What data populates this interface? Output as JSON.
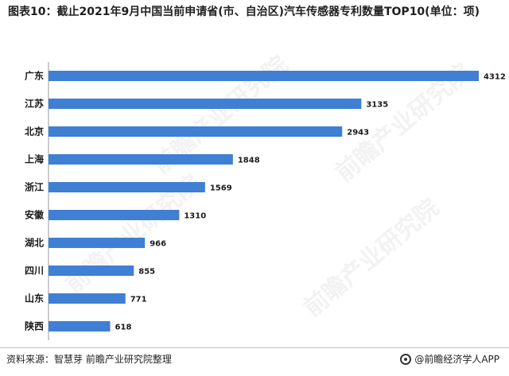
{
  "title": "图表10：截止2021年9月中国当前申请省(市、自治区)汽车传感器专利数量TOP10(单位：项)",
  "source": "资料来源：智慧芽 前瞻产业研究院整理",
  "brand": "@前瞻经济学人APP",
  "watermark": "前瞻产业研究院",
  "colors": {
    "bar": "#3f7fd4"
  },
  "chart_data": {
    "type": "bar",
    "orientation": "horizontal",
    "title": "图表10：截止2021年9月中国当前申请省(市、自治区)汽车传感器专利数量TOP10(单位：项)",
    "categories": [
      "广东",
      "江苏",
      "北京",
      "上海",
      "浙江",
      "安徽",
      "湖北",
      "四川",
      "山东",
      "陕西"
    ],
    "values": [
      4312,
      3135,
      2943,
      1848,
      1569,
      1310,
      966,
      855,
      771,
      618
    ],
    "xlabel": "",
    "ylabel": "",
    "xlim": [
      0,
      4312
    ],
    "grid": false,
    "legend": "none",
    "data_labels": true
  }
}
